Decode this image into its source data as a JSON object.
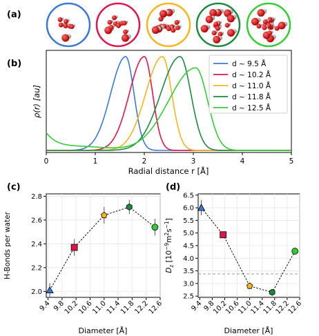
{
  "panel_labels": {
    "a": "(a)",
    "b": "(b)",
    "c": "(c)",
    "d": "(d)"
  },
  "colors": {
    "blue": "#3a78d6",
    "red": "#e0134b",
    "orange": "#f5b51c",
    "darkgreen": "#1b8a3e",
    "lightgreen": "#33cc33",
    "gray": "#999999"
  },
  "panel_a": {
    "type": "image-row",
    "circles": [
      {
        "color": "#3a78d6",
        "structure": "water molecules in a nanotube cross-section"
      },
      {
        "color": "#e0134b",
        "structure": "water molecules in a nanotube cross-section"
      },
      {
        "color": "#f5b51c",
        "structure": "water molecules in a nanotube cross-section"
      },
      {
        "color": "#1b8a3e",
        "structure": "water molecules in a nanotube cross-section"
      },
      {
        "color": "#33cc33",
        "structure": "water molecules in a nanotube cross-section"
      }
    ]
  },
  "chart_data": [
    {
      "panel": "(b)",
      "type": "line",
      "xlabel": "Radial distance r [Å]",
      "ylabel": "ρ(r) [au]",
      "xlim": [
        0,
        5
      ],
      "x_ticks": [
        "0",
        "1",
        "2",
        "3",
        "4",
        "5"
      ],
      "legend_position": "top-right",
      "series": [
        {
          "name": "d ~ 9.5 Å",
          "color": "#3a78d6",
          "peak_x": 1.62,
          "peak_y": 1.0,
          "width": 0.17
        },
        {
          "name": "d ~ 10.2 Å",
          "color": "#e0134b",
          "peak_x": 2.0,
          "peak_y": 1.0,
          "width": 0.17
        },
        {
          "name": "d ~ 11.0 Å",
          "color": "#f5b51c",
          "peak_x": 2.37,
          "peak_y": 1.0,
          "width": 0.19
        },
        {
          "name": "d ~ 11.8 Å",
          "color": "#1b8a3e",
          "peak_x": 2.73,
          "peak_y": 1.0,
          "width": 0.22
        },
        {
          "name": "d ~ 12.5 Å",
          "color": "#33cc33",
          "peak_x": 3.05,
          "peak_y": 0.88,
          "width": 0.24
        }
      ]
    },
    {
      "panel": "(c)",
      "type": "scatter",
      "xlabel": "Diameter [Å]",
      "ylabel": "H-Bonds per water",
      "xlim": [
        9.35,
        12.6
      ],
      "ylim": [
        1.95,
        2.82
      ],
      "x_ticks": [
        "9.4",
        "9.8",
        "10.2",
        "10.6",
        "11.0",
        "11.4",
        "11.8",
        "12.2",
        "12.6"
      ],
      "y_ticks": [
        "2.0",
        "2.2",
        "2.4",
        "2.6",
        "2.8"
      ],
      "points": [
        {
          "x": 9.45,
          "y": 2.01,
          "err": 0.06,
          "marker": "triangle",
          "color": "#3a78d6"
        },
        {
          "x": 10.15,
          "y": 2.37,
          "err": 0.07,
          "marker": "square",
          "color": "#e0134b"
        },
        {
          "x": 11.0,
          "y": 2.64,
          "err": 0.07,
          "marker": "pentagon",
          "color": "#f5b51c"
        },
        {
          "x": 11.72,
          "y": 2.71,
          "err": 0.06,
          "marker": "hexagon",
          "color": "#1b8a3e"
        },
        {
          "x": 12.45,
          "y": 2.54,
          "err": 0.07,
          "marker": "circle",
          "color": "#33cc33"
        }
      ]
    },
    {
      "panel": "(d)",
      "type": "scatter",
      "xlabel": "Diameter [Å]",
      "ylabel": "D_z [10⁻⁹m²s⁻¹]",
      "xlim": [
        9.35,
        12.6
      ],
      "ylim": [
        2.45,
        6.55
      ],
      "x_ticks": [
        "9.4",
        "9.8",
        "10.2",
        "10.6",
        "11.0",
        "11.4",
        "11.8",
        "12.2",
        "12.6"
      ],
      "y_ticks": [
        "2.5",
        "3.0",
        "3.5",
        "4.0",
        "4.5",
        "5.0",
        "5.5",
        "6.0",
        "6.5"
      ],
      "hline": 3.38,
      "points": [
        {
          "x": 9.45,
          "y": 6.0,
          "err": 0.3,
          "marker": "triangle",
          "color": "#3a78d6"
        },
        {
          "x": 10.15,
          "y": 4.93,
          "err": 0.08,
          "marker": "square",
          "color": "#e0134b"
        },
        {
          "x": 11.0,
          "y": 2.9,
          "err": 0.12,
          "marker": "pentagon",
          "color": "#f5b51c"
        },
        {
          "x": 11.72,
          "y": 2.65,
          "err": 0.04,
          "marker": "hexagon",
          "color": "#1b8a3e"
        },
        {
          "x": 12.45,
          "y": 4.28,
          "err": 0.06,
          "marker": "circle",
          "color": "#33cc33"
        }
      ]
    }
  ]
}
